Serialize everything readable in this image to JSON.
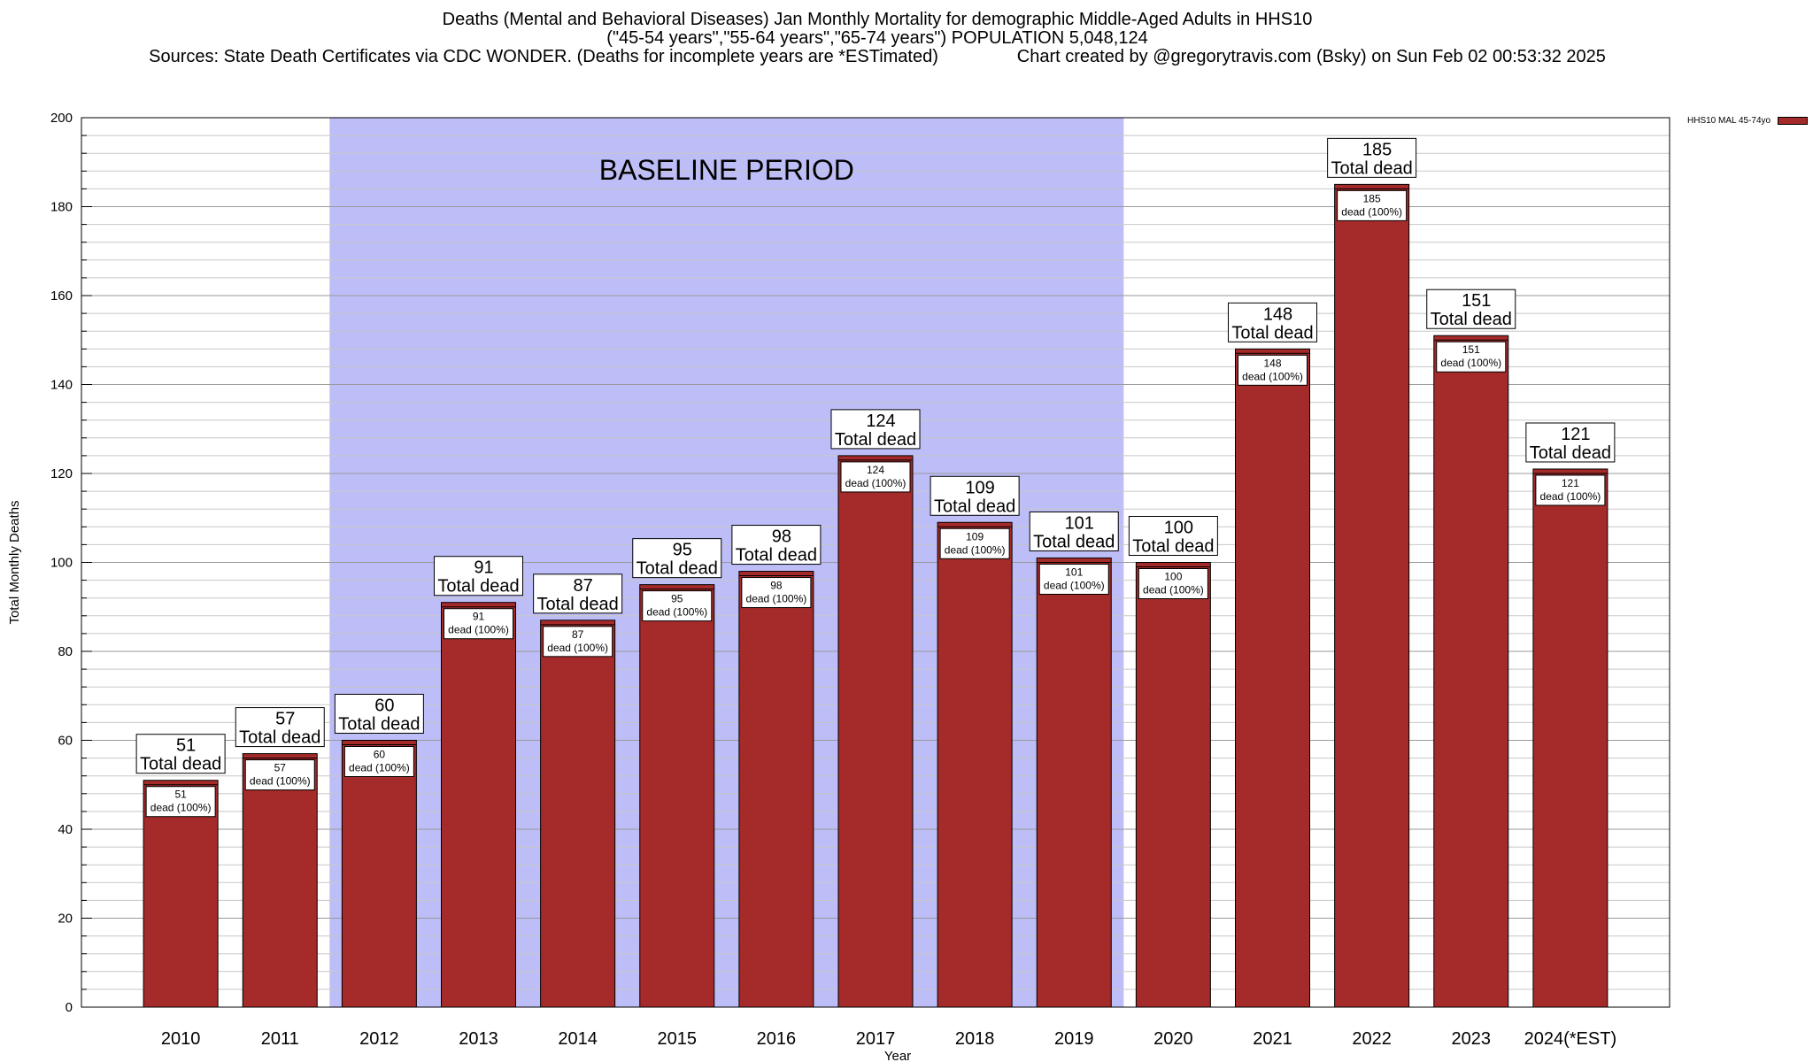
{
  "titles": {
    "line1": "Deaths (Mental and Behavioral Diseases) Jan Monthly Mortality for demographic Middle-Aged Adults in HHS10",
    "line2": "(\"45-54 years\",\"55-64 years\",\"65-74 years\") POPULATION 5,048,124",
    "line3": "Sources: State Death Certificates via CDC WONDER. (Deaths for incomplete years are *ESTimated)                Chart created by @gregorytravis.com (Bsky) on Sun Feb 02 00:53:32 2025"
  },
  "legend": {
    "label": "HHS10 MAL 45-74yo",
    "color": "#a52a2a"
  },
  "chart_data": {
    "type": "bar",
    "xlabel": "Year",
    "ylabel": "Total Monthly Deaths",
    "ylim": [
      0,
      200
    ],
    "yticks": [
      0,
      20,
      40,
      60,
      80,
      100,
      120,
      140,
      160,
      180,
      200
    ],
    "grid": true,
    "legend_position": "top-right",
    "bar_color": "#a52a2a",
    "baseline_shade_color": "#bdbdf7",
    "annotation": "BASELINE PERIOD",
    "baseline_range": [
      "2012",
      "2019"
    ],
    "categories": [
      "2010",
      "2011",
      "2012",
      "2013",
      "2014",
      "2015",
      "2016",
      "2017",
      "2018",
      "2019",
      "2020",
      "2021",
      "2022",
      "2023",
      "2024(*EST)"
    ],
    "series": [
      {
        "name": "HHS10 MAL 45-74yo",
        "values": [
          51,
          57,
          60,
          91,
          87,
          95,
          98,
          124,
          109,
          101,
          100,
          148,
          185,
          151,
          121
        ]
      }
    ],
    "top_label_suffix": "Total dead",
    "inner_label_suffix": "dead (100%)"
  }
}
